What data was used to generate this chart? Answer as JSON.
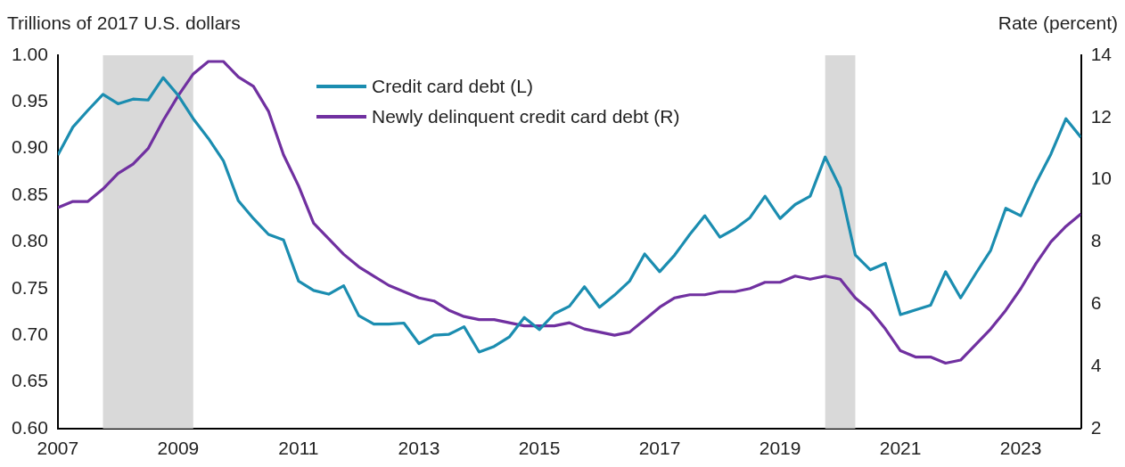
{
  "chart_data": {
    "type": "line",
    "ylabel": "Trillions of 2017 U.S. dollars",
    "y2label": "Rate (percent)",
    "x": [
      2007,
      2007.25,
      2007.5,
      2007.75,
      2008,
      2008.25,
      2008.5,
      2008.75,
      2009,
      2009.25,
      2009.5,
      2009.75,
      2010,
      2010.25,
      2010.5,
      2010.75,
      2011,
      2011.25,
      2011.5,
      2011.75,
      2012,
      2012.25,
      2012.5,
      2012.75,
      2013,
      2013.25,
      2013.5,
      2013.75,
      2014,
      2014.25,
      2014.5,
      2014.75,
      2015,
      2015.25,
      2015.5,
      2015.75,
      2016,
      2016.25,
      2016.5,
      2016.75,
      2017,
      2017.25,
      2017.5,
      2017.75,
      2018,
      2018.25,
      2018.5,
      2018.75,
      2019,
      2019.25,
      2019.5,
      2019.75,
      2020,
      2020.25,
      2020.5,
      2020.75,
      2021,
      2021.25,
      2021.5,
      2021.75,
      2022,
      2022.25,
      2022.5,
      2022.75,
      2023,
      2023.25,
      2023.5,
      2023.75,
      2024
    ],
    "series": [
      {
        "name": "Credit card debt (L)",
        "color": "#1b8db0",
        "values": [
          0.893,
          0.923,
          0.941,
          0.958,
          0.948,
          0.953,
          0.952,
          0.976,
          0.957,
          0.932,
          0.911,
          0.887,
          0.844,
          0.825,
          0.808,
          0.802,
          0.758,
          0.748,
          0.744,
          0.753,
          0.721,
          0.712,
          0.712,
          0.713,
          0.691,
          0.7,
          0.701,
          0.709,
          0.682,
          0.688,
          0.698,
          0.719,
          0.706,
          0.723,
          0.731,
          0.752,
          0.73,
          0.743,
          0.758,
          0.787,
          0.768,
          0.786,
          0.808,
          0.828,
          0.805,
          0.814,
          0.826,
          0.849,
          0.825,
          0.84,
          0.849,
          0.891,
          0.858,
          0.786,
          0.77,
          0.777,
          0.722,
          0.727,
          0.732,
          0.768,
          0.74,
          0.766,
          0.791,
          0.836,
          0.828,
          0.863,
          0.894,
          0.932,
          0.912
        ]
      },
      {
        "name": "Newly delinquent credit card debt (R)",
        "color": "#7030a0",
        "axis": "y2",
        "values": [
          9.1,
          9.3,
          9.3,
          9.7,
          10.2,
          10.5,
          11.0,
          11.9,
          12.7,
          13.4,
          13.8,
          13.8,
          13.3,
          13.0,
          12.2,
          10.8,
          9.8,
          8.6,
          8.1,
          7.6,
          7.2,
          6.9,
          6.6,
          6.4,
          6.2,
          6.1,
          5.8,
          5.6,
          5.5,
          5.5,
          5.4,
          5.3,
          5.3,
          5.3,
          5.4,
          5.2,
          5.1,
          5.0,
          5.1,
          5.5,
          5.9,
          6.2,
          6.3,
          6.3,
          6.4,
          6.4,
          6.5,
          6.7,
          6.7,
          6.9,
          6.8,
          6.9,
          6.8,
          6.2,
          5.8,
          5.2,
          4.5,
          4.3,
          4.3,
          4.1,
          4.2,
          4.7,
          5.2,
          5.8,
          6.5,
          7.3,
          8.0,
          8.5,
          8.9
        ]
      }
    ],
    "xlim": [
      2007,
      2024
    ],
    "xticks": [
      2007,
      2009,
      2011,
      2013,
      2015,
      2017,
      2019,
      2021,
      2023
    ],
    "ylim": [
      0.6,
      1.0
    ],
    "yticks": [
      {
        "value": 0.6,
        "label": "0.60"
      },
      {
        "value": 0.65,
        "label": "0.65"
      },
      {
        "value": 0.7,
        "label": "0.70"
      },
      {
        "value": 0.75,
        "label": "0.75"
      },
      {
        "value": 0.8,
        "label": "0.80"
      },
      {
        "value": 0.85,
        "label": "0.85"
      },
      {
        "value": 0.9,
        "label": "0.90"
      },
      {
        "value": 0.95,
        "label": "0.95"
      },
      {
        "value": 1.0,
        "label": "1.00"
      }
    ],
    "y2lim": [
      2,
      14
    ],
    "y2ticks": [
      2,
      4,
      6,
      8,
      10,
      12,
      14
    ],
    "bands": [
      {
        "axis": "x",
        "from": 2007.75,
        "to": 2009.25,
        "color": "#d9d9d9"
      },
      {
        "axis": "x",
        "from": 2019.75,
        "to": 2020.25,
        "color": "#d9d9d9"
      }
    ],
    "grid": false,
    "legend": "top",
    "marker": "none",
    "line_style": "solid"
  }
}
